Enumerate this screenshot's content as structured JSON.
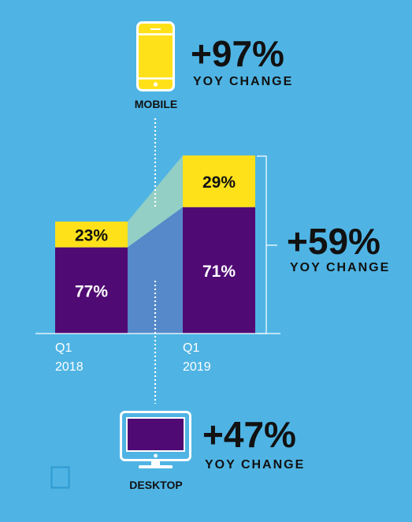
{
  "colors": {
    "background": "#4fb4e4",
    "desktop": "#500a74",
    "mobile": "#ffe11a",
    "mobile_band": "#93cfc4",
    "desktop_band": "#5589c9",
    "white": "#ffffff",
    "text": "#111111"
  },
  "mobile": {
    "icon": "smartphone-icon",
    "label": "MOBILE",
    "change": "+97%",
    "change_label": "YOY CHANGE"
  },
  "desktop": {
    "icon": "monitor-icon",
    "label": "DESKTOP",
    "change": "+47%",
    "change_label": "YOY CHANGE"
  },
  "total": {
    "change": "+59%",
    "change_label": "YOY CHANGE"
  },
  "chart_data": {
    "type": "bar",
    "stacked": true,
    "categories": [
      [
        "Q1",
        "2018"
      ],
      [
        "Q1",
        "2019"
      ]
    ],
    "relative_totals": [
      1.0,
      1.59
    ],
    "series": [
      {
        "name": "Desktop",
        "values": [
          77,
          71
        ],
        "labels": [
          "77%",
          "71%"
        ],
        "color": "#500a74"
      },
      {
        "name": "Mobile",
        "values": [
          23,
          29
        ],
        "labels": [
          "23%",
          "29%"
        ],
        "color": "#ffe11a"
      }
    ]
  }
}
